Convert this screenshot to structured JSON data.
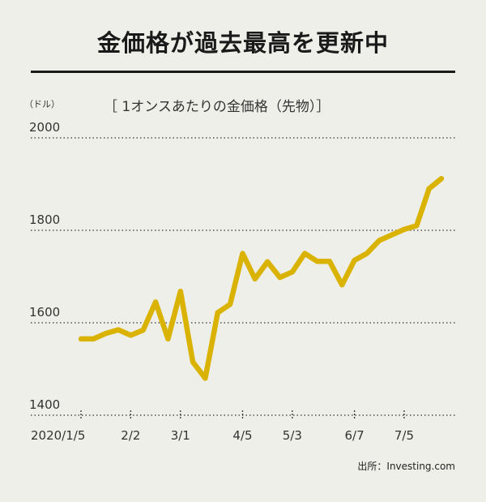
{
  "title": "金価格が過去最高を更新中",
  "unit_label": "（ドル）",
  "subtitle": "［ 1オンスあたりの金価格（先物）］",
  "source": "出所：Investing.com",
  "colors": {
    "line": "#d9b300",
    "background": "#efefea",
    "grid": "#333333"
  },
  "chart_data": {
    "type": "line",
    "title": "金価格が過去最高を更新中",
    "subtitle": "［ 1オンスあたりの金価格（先物）］",
    "ylabel": "（ドル）",
    "xlabel": "",
    "ylim": [
      1400,
      2000
    ],
    "yticks": [
      1400,
      1600,
      1800,
      2000
    ],
    "grid": "horizontal dotted",
    "xticks": [
      "2020/1/5",
      "2/2",
      "3/1",
      "4/5",
      "5/3",
      "6/7",
      "7/5"
    ],
    "xtick_index": [
      0,
      4,
      8,
      13,
      17,
      22,
      26
    ],
    "series": [
      {
        "values": [
          1565,
          1565,
          1577,
          1585,
          1573,
          1584,
          1645,
          1565,
          1668,
          1515,
          1480,
          1622,
          1640,
          1750,
          1695,
          1732,
          1698,
          1710,
          1750,
          1733,
          1733,
          1682,
          1735,
          1750,
          1778,
          1790,
          1802,
          1810,
          1890,
          1912
        ]
      }
    ]
  }
}
